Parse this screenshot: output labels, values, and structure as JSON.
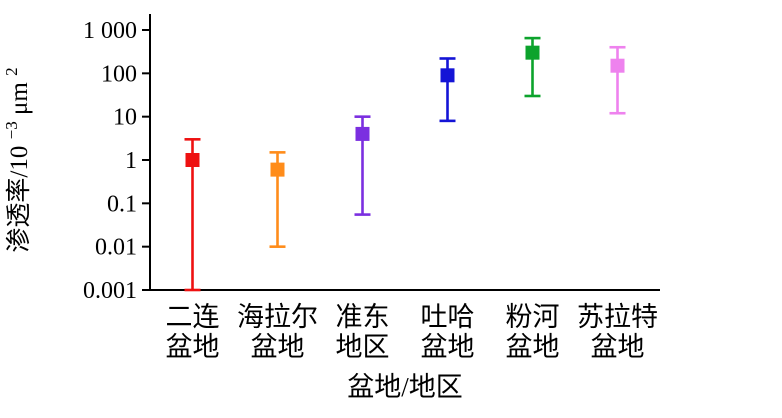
{
  "chart_data": {
    "type": "scatter",
    "subtype": "point-with-min-max-range-bars",
    "title": "",
    "xlabel": "盆地/地区",
    "ylabel": {
      "prefix": "渗透率/10",
      "sup1": "−3",
      "mid": "μm",
      "sup2": "2"
    },
    "y_scale": "log",
    "ylim": [
      0.001,
      1000
    ],
    "grid": false,
    "legend": "none",
    "y_ticks": [
      {
        "value": 0.001,
        "label": "0.001"
      },
      {
        "value": 0.01,
        "label": "0.01"
      },
      {
        "value": 0.1,
        "label": "0.1"
      },
      {
        "value": 1,
        "label": "1"
      },
      {
        "value": 10,
        "label": "10"
      },
      {
        "value": 100,
        "label": "100"
      },
      {
        "value": 1000,
        "label": "1 000"
      }
    ],
    "points": [
      {
        "category": "二连盆地",
        "label_lines": [
          "二连",
          "盆地"
        ],
        "color": "#ee1111",
        "value": 1.0,
        "min": 0.001,
        "max": 3
      },
      {
        "category": "海拉尔盆地",
        "label_lines": [
          "海拉尔",
          "盆地"
        ],
        "color": "#ff8c1a",
        "value": 0.6,
        "min": 0.01,
        "max": 1.5
      },
      {
        "category": "准东地区",
        "label_lines": [
          "准东",
          "地区"
        ],
        "color": "#7b2fe0",
        "value": 4,
        "min": 0.055,
        "max": 10
      },
      {
        "category": "吐哈盆地",
        "label_lines": [
          "吐哈",
          "盆地"
        ],
        "color": "#1414d6",
        "value": 90,
        "min": 8,
        "max": 220
      },
      {
        "category": "粉河盆地",
        "label_lines": [
          "粉河",
          "盆地"
        ],
        "color": "#0ca32c",
        "value": 300,
        "min": 30,
        "max": 650
      },
      {
        "category": "苏拉特盆地",
        "label_lines": [
          "苏拉特",
          "盆地"
        ],
        "color": "#ee82ee",
        "value": 150,
        "min": 12,
        "max": 400
      }
    ]
  }
}
